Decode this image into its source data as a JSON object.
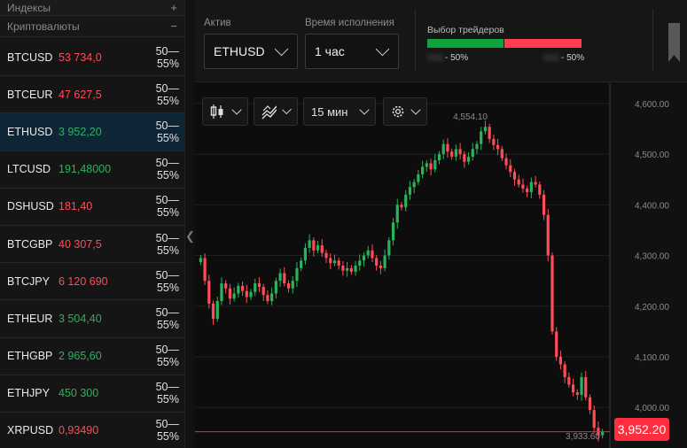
{
  "sidebar": {
    "indices_label": "Индексы",
    "indices_sign": "+",
    "crypto_label": "Криптовалюты",
    "crypto_sign": "−",
    "assets": [
      {
        "symbol": "BTCUSD",
        "price": "53 734,0",
        "trend": "down",
        "payout": "50—55%"
      },
      {
        "symbol": "BTCEUR",
        "price": "47 627,5",
        "trend": "down",
        "payout": "50—55%"
      },
      {
        "symbol": "ETHUSD",
        "price": "3 952,20",
        "trend": "up",
        "payout": "50—55%"
      },
      {
        "symbol": "LTCUSD",
        "price": "191,48000",
        "trend": "up",
        "payout": "50—55%"
      },
      {
        "symbol": "DSHUSD",
        "price": "181,40",
        "trend": "down",
        "payout": "50—55%"
      },
      {
        "symbol": "BTCGBP",
        "price": "40 307,5",
        "trend": "down",
        "payout": "50—55%"
      },
      {
        "symbol": "BTCJPY",
        "price": "6 120 690",
        "trend": "down",
        "payout": "50—55%"
      },
      {
        "symbol": "ETHEUR",
        "price": "3 504,40",
        "trend": "up",
        "payout": "50—55%"
      },
      {
        "symbol": "ETHGBP",
        "price": "2 965,60",
        "trend": "up",
        "payout": "50—55%"
      },
      {
        "symbol": "ETHJPY",
        "price": "450 300",
        "trend": "up",
        "payout": "50—55%"
      },
      {
        "symbol": "XRPUSD",
        "price": "0,93490",
        "trend": "down",
        "payout": "50—55%"
      }
    ],
    "selected_index": 2
  },
  "controls": {
    "asset_label": "Актив",
    "asset_value": "ETHUSD",
    "expiry_label": "Время исполнения",
    "expiry_value": "1 час",
    "traders_choice_title": "Выбор трейдеров",
    "buy_percent": "- 50%",
    "sell_percent": "- 50%"
  },
  "toolbar": {
    "interval_value": "15 мин"
  },
  "colors": {
    "up": "#2bb35a",
    "down": "#ff4d58",
    "buy_bar": "#0fa33b",
    "sell_bar": "#ff3d4f",
    "selected_row": "#0e2536"
  },
  "chart_data": {
    "type": "candlestick",
    "symbol": "ETHUSD",
    "interval": "15 мин",
    "yticks": [
      "4,600.00",
      "4,500.00",
      "4,400.00",
      "4,300.00",
      "4,200.00",
      "4,100.00",
      "4,000.00"
    ],
    "ytick_values": [
      4600,
      4500,
      4400,
      4300,
      4200,
      4100,
      4000
    ],
    "ylim": [
      3920,
      4640
    ],
    "high_label": "4,554.10",
    "high_value": 4554.1,
    "low_label": "3,933.60",
    "low_value": 3933.6,
    "current_label": "3,952.20",
    "current_value": 3952.2,
    "closes": [
      4295,
      4250,
      4205,
      4175,
      4210,
      4245,
      4235,
      4215,
      4225,
      4240,
      4230,
      4218,
      4228,
      4245,
      4238,
      4222,
      4210,
      4225,
      4250,
      4265,
      4245,
      4235,
      4250,
      4275,
      4290,
      4315,
      4330,
      4310,
      4320,
      4305,
      4295,
      4285,
      4290,
      4280,
      4270,
      4275,
      4268,
      4280,
      4290,
      4300,
      4310,
      4295,
      4280,
      4275,
      4300,
      4330,
      4365,
      4400,
      4395,
      4420,
      4435,
      4445,
      4460,
      4475,
      4482,
      4470,
      4488,
      4500,
      4520,
      4505,
      4495,
      4510,
      4500,
      4485,
      4495,
      4510,
      4520,
      4545,
      4554,
      4530,
      4518,
      4510,
      4492,
      4478,
      4465,
      4450,
      4440,
      4432,
      4425,
      4445,
      4440,
      4420,
      4380,
      4300,
      4150,
      4100,
      4085,
      4060,
      4045,
      4030,
      4025,
      4060,
      4020,
      3995,
      3960,
      3945,
      3952
    ]
  }
}
